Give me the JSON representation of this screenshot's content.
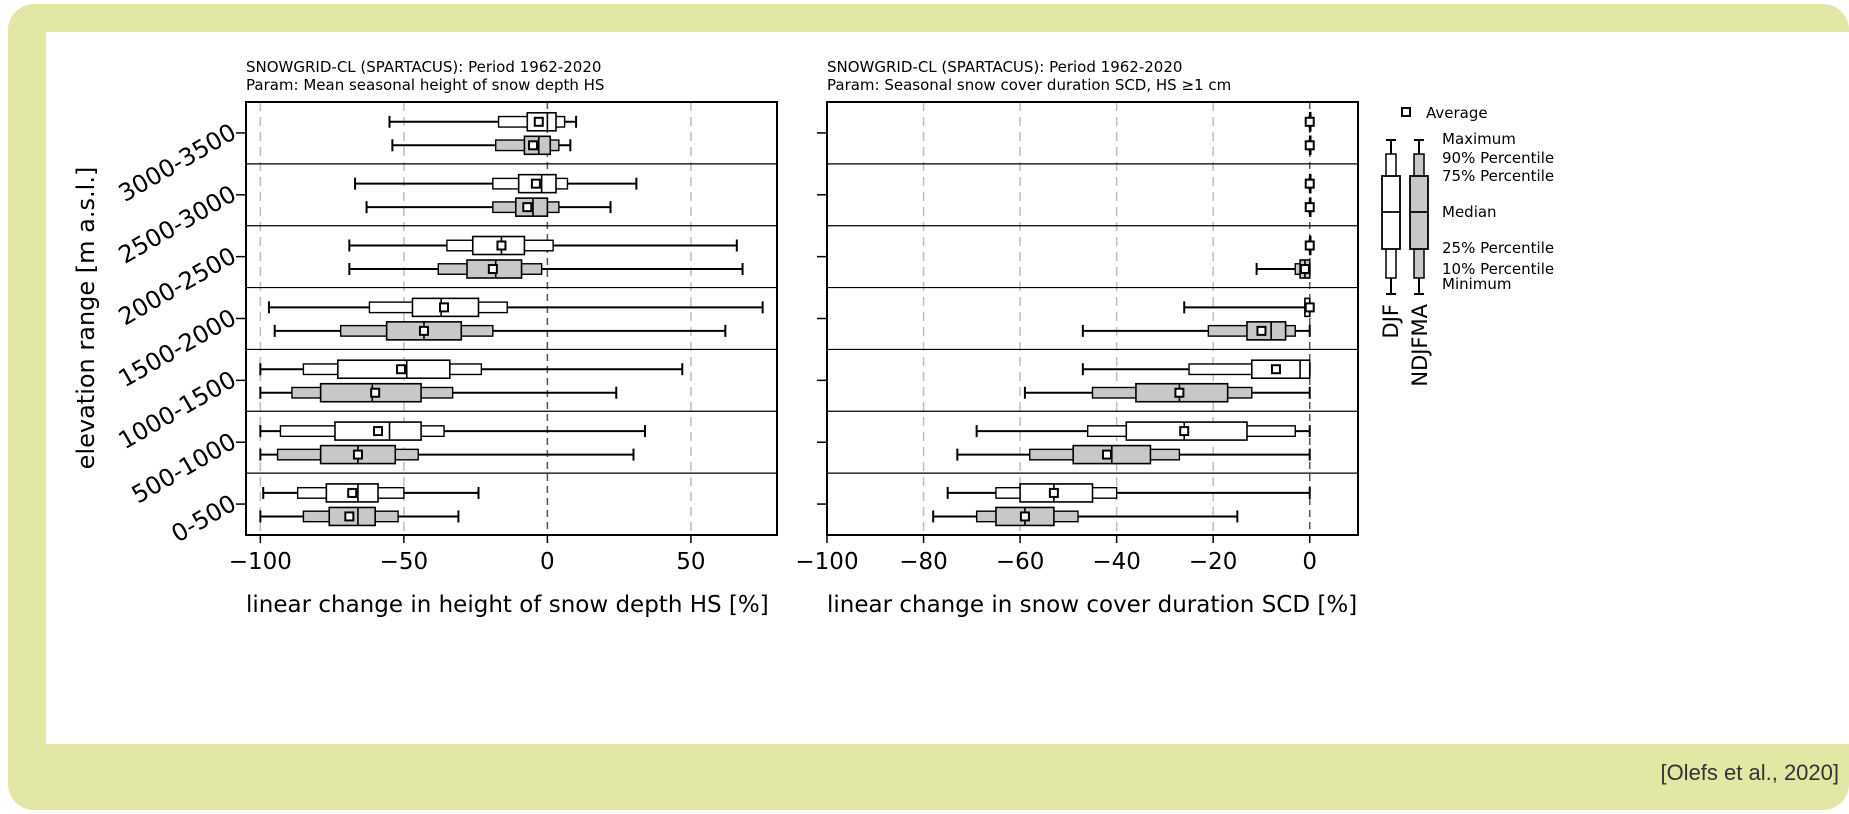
{
  "colors": {
    "frame": "#e2e7a6",
    "box_djf": "#ffffff",
    "box_ndjfma": "#c8c8c8",
    "stroke": "#000000",
    "grid": "#bdbdbd"
  },
  "citation": "[Olefs et al., 2020]",
  "chart_data": [
    {
      "type": "boxplot",
      "title_line1": "SNOWGRID-CL (SPARTACUS): Period 1962-2020",
      "title_line2": "Param: Mean seasonal height of snow depth HS",
      "xlabel": "linear change in height of snow depth HS [%]",
      "ylabel": "elevation range [m a.s.l.]",
      "xlim": [
        -105,
        80
      ],
      "xticks": [
        -100,
        -50,
        0,
        50
      ],
      "xtick_labels": [
        "−100",
        "−50",
        "0",
        "50"
      ],
      "grid": "vertical dashed at -100, -50, 0, 50",
      "categories": [
        "3000-3500",
        "2500-3000",
        "2000-2500",
        "1500-2000",
        "1000-1500",
        "500-1000",
        "0-500"
      ],
      "series": [
        {
          "name": "DJF",
          "boxes": [
            {
              "min": -55,
              "p10": -17,
              "q1": -7,
              "median": 0,
              "q3": 3,
              "p90": 6,
              "max": 10,
              "mean": -3
            },
            {
              "min": -67,
              "p10": -19,
              "q1": -10,
              "median": -2,
              "q3": 3,
              "p90": 7,
              "max": 31,
              "mean": -4
            },
            {
              "min": -69,
              "p10": -35,
              "q1": -26,
              "median": -16,
              "q3": -8,
              "p90": 2,
              "max": 66,
              "mean": -16
            },
            {
              "min": -97,
              "p10": -62,
              "q1": -47,
              "median": -37,
              "q3": -24,
              "p90": -14,
              "max": 75,
              "mean": -36
            },
            {
              "min": -100,
              "p10": -85,
              "q1": -73,
              "median": -49,
              "q3": -34,
              "p90": -23,
              "max": 47,
              "mean": -51
            },
            {
              "min": -100,
              "p10": -93,
              "q1": -74,
              "median": -55,
              "q3": -44,
              "p90": -36,
              "max": 34,
              "mean": -59
            },
            {
              "min": -99,
              "p10": -87,
              "q1": -77,
              "median": -66,
              "q3": -59,
              "p90": -50,
              "max": -24,
              "mean": -68
            }
          ]
        },
        {
          "name": "NDJFMA",
          "boxes": [
            {
              "min": -54,
              "p10": -18,
              "q1": -8,
              "median": -3,
              "q3": 1,
              "p90": 4,
              "max": 8,
              "mean": -5
            },
            {
              "min": -63,
              "p10": -19,
              "q1": -11,
              "median": -5,
              "q3": 0,
              "p90": 4,
              "max": 22,
              "mean": -7
            },
            {
              "min": -69,
              "p10": -38,
              "q1": -28,
              "median": -18,
              "q3": -9,
              "p90": -2,
              "max": 68,
              "mean": -19
            },
            {
              "min": -95,
              "p10": -72,
              "q1": -56,
              "median": -43,
              "q3": -30,
              "p90": -19,
              "max": 62,
              "mean": -43
            },
            {
              "min": -100,
              "p10": -89,
              "q1": -79,
              "median": -61,
              "q3": -44,
              "p90": -33,
              "max": 24,
              "mean": -60
            },
            {
              "min": -100,
              "p10": -94,
              "q1": -79,
              "median": -66,
              "q3": -53,
              "p90": -45,
              "max": 30,
              "mean": -66
            },
            {
              "min": -100,
              "p10": -85,
              "q1": -76,
              "median": -66,
              "q3": -60,
              "p90": -52,
              "max": -31,
              "mean": -69
            }
          ]
        }
      ]
    },
    {
      "type": "boxplot",
      "title_line1": "SNOWGRID-CL (SPARTACUS): Period 1962-2020",
      "title_line2": "Param: Seasonal snow cover duration SCD, HS ≥1 cm",
      "xlabel": "linear change in snow cover duration SCD [%]",
      "ylabel": "",
      "xlim": [
        -100,
        10
      ],
      "xticks": [
        -100,
        -80,
        -60,
        -40,
        -20,
        0
      ],
      "xtick_labels": [
        "−100",
        "−80",
        "−60",
        "−40",
        "−20",
        "0"
      ],
      "grid": "vertical dashed at -80, -60, -40, -20, 0",
      "categories": [
        "3000-3500",
        "2500-3000",
        "2000-2500",
        "1500-2000",
        "1000-1500",
        "500-1000",
        "0-500"
      ],
      "series": [
        {
          "name": "DJF",
          "boxes": [
            {
              "min": 0,
              "p10": 0,
              "q1": 0,
              "median": 0,
              "q3": 0,
              "p90": 0,
              "max": 0,
              "mean": 0
            },
            {
              "min": 0,
              "p10": 0,
              "q1": 0,
              "median": 0,
              "q3": 0,
              "p90": 0,
              "max": 0,
              "mean": 0
            },
            {
              "min": 0,
              "p10": 0,
              "q1": 0,
              "median": 0,
              "q3": 0,
              "p90": 0,
              "max": 0,
              "mean": 0
            },
            {
              "min": -26,
              "p10": -1,
              "q1": -1,
              "median": 0,
              "q3": 0,
              "p90": 0,
              "max": 0,
              "mean": 0
            },
            {
              "min": -47,
              "p10": -25,
              "q1": -12,
              "median": -2,
              "q3": 0,
              "p90": 0,
              "max": 0,
              "mean": -7
            },
            {
              "min": -69,
              "p10": -46,
              "q1": -38,
              "median": -26,
              "q3": -13,
              "p90": -3,
              "max": 0,
              "mean": -26
            },
            {
              "min": -75,
              "p10": -65,
              "q1": -60,
              "median": -53,
              "q3": -45,
              "p90": -40,
              "max": 0,
              "mean": -53
            }
          ]
        },
        {
          "name": "NDJFMA",
          "boxes": [
            {
              "min": 0,
              "p10": 0,
              "q1": 0,
              "median": 0,
              "q3": 0,
              "p90": 0,
              "max": 0,
              "mean": 0
            },
            {
              "min": 0,
              "p10": 0,
              "q1": 0,
              "median": 0,
              "q3": 0,
              "p90": 0,
              "max": 0,
              "mean": 0
            },
            {
              "min": -11,
              "p10": -3,
              "q1": -2,
              "median": -1,
              "q3": 0,
              "p90": 0,
              "max": 0,
              "mean": -1
            },
            {
              "min": -47,
              "p10": -21,
              "q1": -13,
              "median": -8,
              "q3": -5,
              "p90": -3,
              "max": 0,
              "mean": -10
            },
            {
              "min": -59,
              "p10": -45,
              "q1": -36,
              "median": -27,
              "q3": -17,
              "p90": -12,
              "max": 0,
              "mean": -27
            },
            {
              "min": -73,
              "p10": -58,
              "q1": -49,
              "median": -41,
              "q3": -33,
              "p90": -27,
              "max": 0,
              "mean": -42
            },
            {
              "min": -78,
              "p10": -69,
              "q1": -65,
              "median": -59,
              "q3": -53,
              "p90": -48,
              "max": -15,
              "mean": -59
            }
          ]
        }
      ]
    }
  ],
  "legend": {
    "average": "Average",
    "maximum": "Maximum",
    "p90": "90% Percentile",
    "p75": "75% Percentile",
    "median": "Median",
    "p25": "25% Percentile",
    "p10": "10% Percentile",
    "minimum": "Minimum",
    "series1": "DJF",
    "series2": "NDJFMA"
  }
}
